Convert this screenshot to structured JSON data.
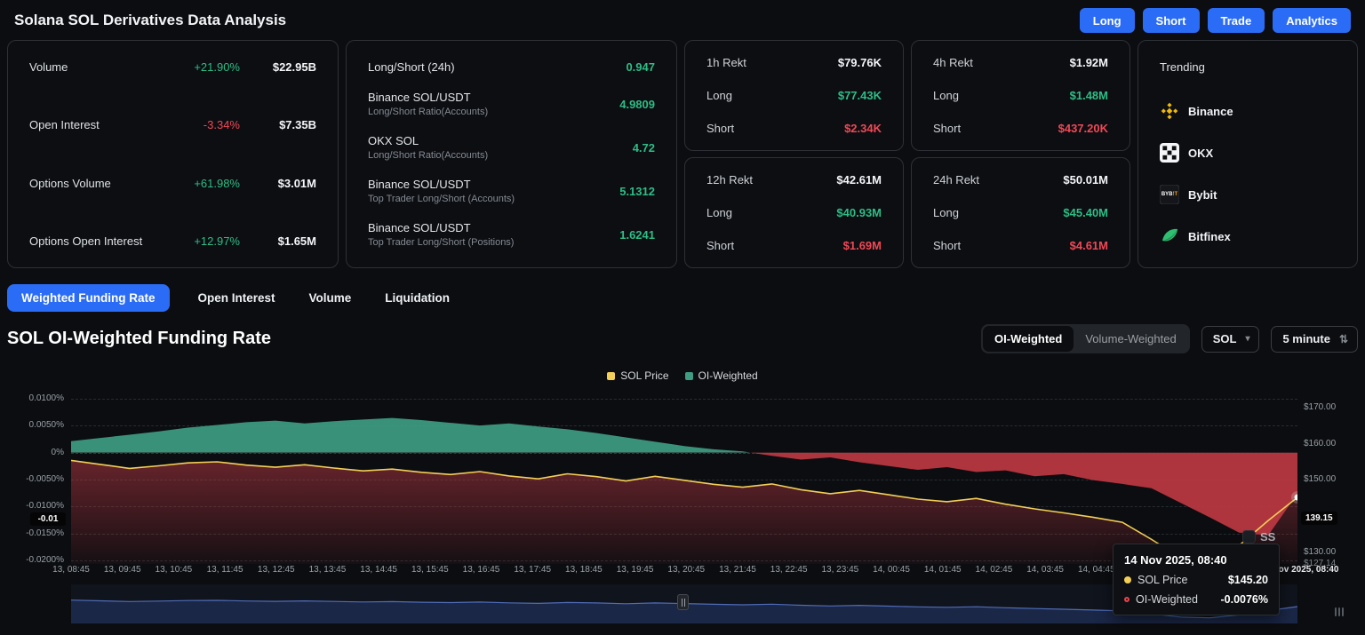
{
  "header": {
    "title": "Solana SOL Derivatives Data Analysis",
    "actions": [
      "Long",
      "Short",
      "Trade",
      "Analytics"
    ]
  },
  "stats_card": {
    "rows": [
      {
        "label": "Volume",
        "change": "+21.90%",
        "value": "$22.95B",
        "direction": "up"
      },
      {
        "label": "Open Interest",
        "change": "-3.34%",
        "value": "$7.35B",
        "direction": "down"
      },
      {
        "label": "Options Volume",
        "change": "+61.98%",
        "value": "$3.01M",
        "direction": "up"
      },
      {
        "label": "Options Open Interest",
        "change": "+12.97%",
        "value": "$1.65M",
        "direction": "up"
      }
    ]
  },
  "ratio_card": {
    "rows": [
      {
        "label": "Long/Short (24h)",
        "sub": "",
        "value": "0.947"
      },
      {
        "label": "Binance SOL/USDT",
        "sub": "Long/Short Ratio(Accounts)",
        "value": "4.9809"
      },
      {
        "label": "OKX SOL",
        "sub": "Long/Short Ratio(Accounts)",
        "value": "4.72"
      },
      {
        "label": "Binance SOL/USDT",
        "sub": "Top Trader Long/Short (Accounts)",
        "value": "5.1312"
      },
      {
        "label": "Binance SOL/USDT",
        "sub": "Top Trader Long/Short (Positions)",
        "value": "1.6241"
      }
    ]
  },
  "rekt_labels": {
    "long": "Long",
    "short": "Short"
  },
  "rekt_cards": [
    {
      "title": "1h Rekt",
      "total": "$79.76K",
      "long": "$77.43K",
      "short": "$2.34K"
    },
    {
      "title": "4h Rekt",
      "total": "$1.92M",
      "long": "$1.48M",
      "short": "$437.20K"
    },
    {
      "title": "12h Rekt",
      "total": "$42.61M",
      "long": "$40.93M",
      "short": "$1.69M"
    },
    {
      "title": "24h Rekt",
      "total": "$50.01M",
      "long": "$45.40M",
      "short": "$4.61M"
    }
  ],
  "trending": {
    "title": "Trending",
    "items": [
      {
        "name": "Binance",
        "icon": "binance-icon"
      },
      {
        "name": "OKX",
        "icon": "okx-icon"
      },
      {
        "name": "Bybit",
        "icon": "bybit-icon",
        "icon_text": "BYB!T"
      },
      {
        "name": "Bitfinex",
        "icon": "bitfinex-icon"
      }
    ]
  },
  "tabs": {
    "items": [
      "Weighted Funding Rate",
      "Open Interest",
      "Volume",
      "Liquidation"
    ],
    "active": 0
  },
  "section": {
    "title": "SOL OI-Weighted Funding Rate",
    "toggle": [
      "OI-Weighted",
      "Volume-Weighted"
    ],
    "toggle_active": 0,
    "symbol_select": "SOL",
    "interval_select": "5 minute"
  },
  "chart_data": {
    "type": "area",
    "title": "SOL OI-Weighted Funding Rate",
    "legend": [
      {
        "label": "SOL Price",
        "color": "#f3cf57"
      },
      {
        "label": "OI-Weighted",
        "color": "#3f9c83"
      }
    ],
    "x_tick_labels": [
      "13, 08:45",
      "13, 09:45",
      "13, 10:45",
      "13, 11:45",
      "13, 12:45",
      "13, 13:45",
      "13, 14:45",
      "13, 15:45",
      "13, 16:45",
      "13, 17:45",
      "13, 18:45",
      "13, 19:45",
      "13, 20:45",
      "13, 21:45",
      "13, 22:45",
      "13, 23:45",
      "14, 00:45",
      "14, 01:45",
      "14, 02:45",
      "14, 03:45",
      "14, 04:45"
    ],
    "x_end_label": "14 Nov 2025, 08:40",
    "funding_axis": {
      "unit": "%",
      "ticks": [
        {
          "value": 0.01,
          "label": "0.0100%"
        },
        {
          "value": 0.005,
          "label": "0.0050%"
        },
        {
          "value": 0,
          "label": "0%"
        },
        {
          "value": -0.005,
          "label": "-0.0050%"
        },
        {
          "value": -0.01,
          "label": "-0.0100%"
        },
        {
          "value": -0.015,
          "label": "-0.0150%"
        },
        {
          "value": -0.02,
          "label": "-0.0200%"
        }
      ],
      "max": 0.0106,
      "min": -0.0206,
      "marker": {
        "value": -0.0125,
        "label": "-0.01"
      }
    },
    "price_axis": {
      "unit": "$",
      "ticks": [
        {
          "value": 170,
          "label": "$170.00"
        },
        {
          "value": 160,
          "label": "$160.00"
        },
        {
          "value": 150,
          "label": "$150.00"
        },
        {
          "value": 130,
          "label": "$130.00"
        }
      ],
      "max": 173.4,
      "min": 126.8,
      "min_label": {
        "value": 127.14,
        "label": "$127.14"
      },
      "marker": {
        "value": 139.15,
        "label": "139.15"
      }
    },
    "series": {
      "price": {
        "name": "SOL Price",
        "axis": "right",
        "color": "#f3cf57",
        "fill_color": "#c23a46",
        "values": [
          155.4,
          154.3,
          153.2,
          153.9,
          154.7,
          155.0,
          154.1,
          153.5,
          154.2,
          153.3,
          152.5,
          153.0,
          152.1,
          151.5,
          152.3,
          151.1,
          150.3,
          151.7,
          150.9,
          149.7,
          151.0,
          149.9,
          148.8,
          148.0,
          148.9,
          147.3,
          146.2,
          147.1,
          145.9,
          144.7,
          144.0,
          144.9,
          143.3,
          142.0,
          140.9,
          139.7,
          138.3,
          133.6,
          128.5,
          127.2,
          131.9,
          138.8,
          145.2
        ]
      },
      "funding": {
        "name": "OI-Weighted",
        "axis": "left",
        "positive_color": "#3f9c83",
        "negative_color": "#bd3742",
        "values": [
          0.0021,
          0.0027,
          0.0033,
          0.0039,
          0.0046,
          0.0051,
          0.0056,
          0.0059,
          0.0054,
          0.0058,
          0.0061,
          0.0064,
          0.006,
          0.0055,
          0.005,
          0.0054,
          0.0048,
          0.0043,
          0.0036,
          0.0028,
          0.002,
          0.0012,
          0.0006,
          0.0002,
          -0.0006,
          -0.0013,
          -0.0009,
          -0.0018,
          -0.0025,
          -0.0032,
          -0.0027,
          -0.0036,
          -0.0033,
          -0.0044,
          -0.004,
          -0.0051,
          -0.0058,
          -0.0066,
          -0.0093,
          -0.012,
          -0.0148,
          -0.0153,
          -0.0076
        ]
      }
    },
    "last_point": {
      "price": 145.2,
      "funding": -0.0076
    }
  },
  "tooltip": {
    "title": "14 Nov 2025, 08:40",
    "rows": [
      {
        "label": "SOL Price",
        "value": "$145.20",
        "color": "#f3cf57",
        "style": "filled"
      },
      {
        "label": "OI-Weighted",
        "value": "-0.0076%",
        "color": "#e8434e",
        "style": "ring"
      }
    ]
  },
  "watermark": "SS",
  "colors": {
    "accent_blue": "#2b6cf6",
    "green": "#2ebd85",
    "red": "#ef4856",
    "chart_green": "#3f9c83",
    "chart_red": "#bd3742",
    "price_yellow": "#f3cf57"
  }
}
